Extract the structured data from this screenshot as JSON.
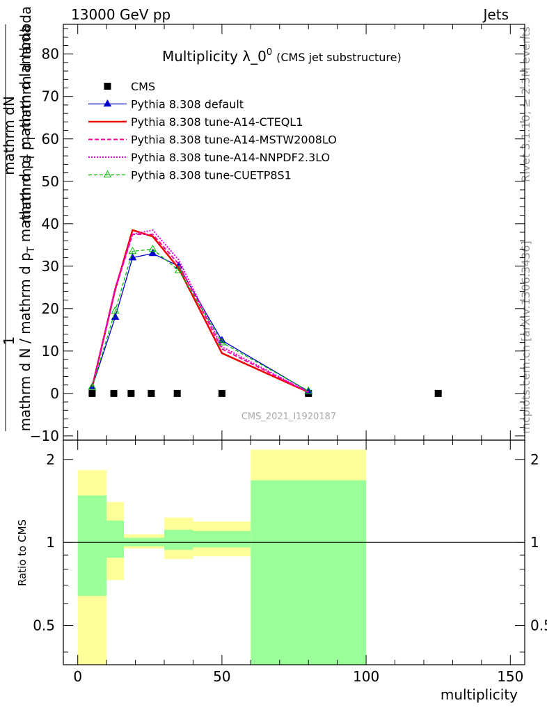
{
  "header": {
    "left": "13000 GeV pp",
    "right": "Jets"
  },
  "side_labels": {
    "rivet": "Rivet 3.1.10, ≥ 2.3M events",
    "mcplots": "mcplots.cern.ch [arXiv:1306.3436]"
  },
  "watermark": "CMS_2021_I1920187",
  "colors": {
    "cms": "#000000",
    "default": "#0000cc",
    "cteql1": "#ee0000",
    "mstw": "#ff0099",
    "nnpdf": "#dd00dd",
    "cuetp8s1": "#00bb00",
    "band_inner": "#99ff99",
    "band_outer": "#ffff99"
  },
  "chart_data": [
    {
      "type": "line",
      "title_main": "Multiplicity λ_0",
      "title_sup": "0",
      "title_sub": "(CMS jet substructure)",
      "ylabel_num": "mathrm dN",
      "ylabel_num2": "mathrm d p_T mathrm d lambda",
      "ylabel_num2_main": "mathrm d p",
      "ylabel_num2_sub": "T",
      "ylabel_num2_rest": " mathrm d lambda",
      "ylabel_top": "1",
      "ylabel_den": "mathrm d N / mathrm d p_T mathrm d p_T mathrm d lambda",
      "ylabel_den_parts": [
        "mathrm d N / mathrm d p",
        "T",
        " mathrm d p",
        "T",
        " mathrm d lambda"
      ],
      "xlim": [
        -5,
        155
      ],
      "ylim": [
        -11,
        87
      ],
      "yticks": [
        -10,
        0,
        10,
        20,
        30,
        40,
        50,
        60,
        70,
        80
      ],
      "yticks_labels": [
        "−10",
        "0",
        "10",
        "20",
        "30",
        "40",
        "50",
        "60",
        "70",
        "80"
      ],
      "legend_position": "top-left",
      "series": [
        {
          "name": "CMS",
          "key": "cms",
          "style": "square",
          "x": [
            5,
            12.5,
            18.5,
            25.5,
            34.5,
            50,
            80,
            125
          ],
          "y": [
            0,
            0,
            0,
            0,
            0,
            0,
            0,
            0
          ]
        },
        {
          "name": "Pythia 8.308 default",
          "key": "default",
          "style": "solid-triangle",
          "x": [
            5,
            13,
            19,
            26,
            35,
            50,
            80
          ],
          "y": [
            1.5,
            18,
            32,
            33,
            30,
            12.5,
            0.5
          ]
        },
        {
          "name": "Pythia 8.308 tune-A14-CTEQL1",
          "key": "cteql1",
          "style": "solid-thick",
          "x": [
            5,
            13,
            19,
            26,
            35,
            50,
            80
          ],
          "y": [
            1.5,
            24.5,
            38.5,
            37,
            29.5,
            9.5,
            0.3
          ]
        },
        {
          "name": "Pythia 8.308 tune-A14-MSTW2008LO",
          "key": "mstw",
          "style": "dashed",
          "x": [
            5,
            13,
            19,
            26,
            35,
            50,
            80
          ],
          "y": [
            1.5,
            24.5,
            37.5,
            37.5,
            30.5,
            10.5,
            0.3
          ]
        },
        {
          "name": "Pythia 8.308 tune-A14-NNPDF2.3LO",
          "key": "nnpdf",
          "style": "dotted",
          "x": [
            5,
            13,
            19,
            26,
            35,
            50,
            80
          ],
          "y": [
            1.5,
            25,
            37.5,
            38.5,
            31.5,
            11,
            0.3
          ]
        },
        {
          "name": "Pythia 8.308 tune-CUETP8S1",
          "key": "cuetp8s1",
          "style": "dashed-open-triangle",
          "x": [
            5,
            13,
            19,
            26,
            35,
            50,
            80
          ],
          "y": [
            1.5,
            19.5,
            33.5,
            34,
            29,
            12,
            0.6
          ]
        }
      ]
    },
    {
      "type": "area",
      "ylabel": "Ratio to CMS",
      "xlabel": "multiplicity",
      "xlim": [
        -5,
        155
      ],
      "ylim": [
        0.36,
        2.35
      ],
      "xticks": [
        0,
        50,
        100,
        150
      ],
      "yticks": [
        0.5,
        1,
        2
      ],
      "yticks_labels": [
        "0.5",
        "1",
        "2"
      ],
      "bands": [
        {
          "x0": 0,
          "x1": 10,
          "inner": [
            0.64,
            1.48
          ],
          "outer": [
            0.3,
            1.83
          ]
        },
        {
          "x0": 10,
          "x1": 16,
          "inner": [
            0.88,
            1.2
          ],
          "outer": [
            0.73,
            1.4
          ]
        },
        {
          "x0": 16,
          "x1": 30,
          "inner": [
            0.97,
            1.04
          ],
          "outer": [
            0.95,
            1.07
          ]
        },
        {
          "x0": 30,
          "x1": 40,
          "inner": [
            0.94,
            1.11
          ],
          "outer": [
            0.87,
            1.23
          ]
        },
        {
          "x0": 40,
          "x1": 60,
          "inner": [
            0.96,
            1.1
          ],
          "outer": [
            0.89,
            1.19
          ]
        },
        {
          "x0": 60,
          "x1": 100,
          "inner": [
            0.3,
            1.68
          ],
          "outer": [
            0.3,
            2.17
          ]
        }
      ]
    }
  ]
}
